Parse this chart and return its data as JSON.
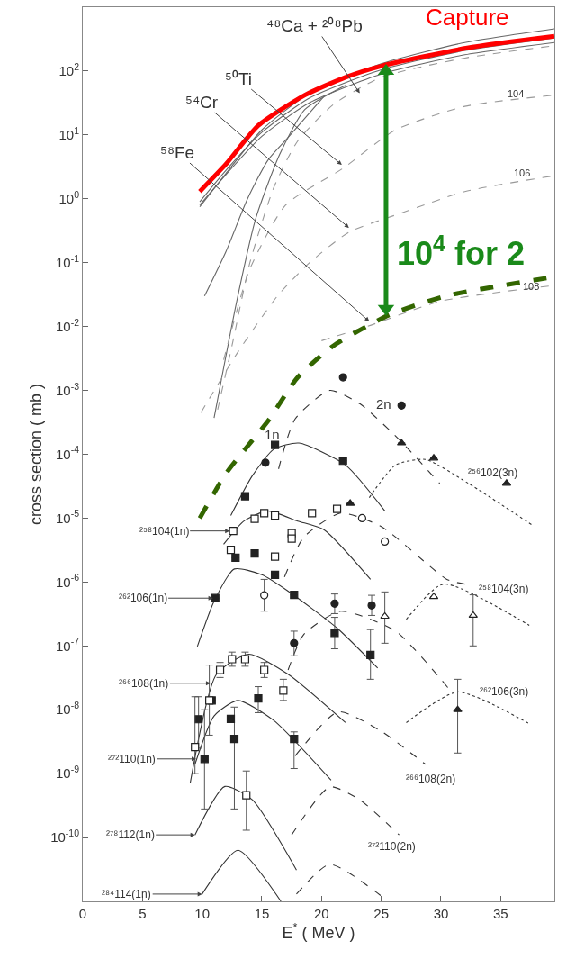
{
  "chart_data": {
    "type": "line",
    "xlabel": "E$^{*}$ ( MeV )",
    "ylabel": "cross section ( mb )",
    "log": "y",
    "xlim": [
      0,
      39.5
    ],
    "xticks": [
      0,
      5,
      10,
      15,
      20,
      25,
      30,
      35
    ],
    "ylim": [
      1e-11,
      1000
    ],
    "yticks": [
      {
        "value": 100,
        "label": "10$^{2}$"
      },
      {
        "value": 10,
        "label": "10$^{1}$"
      },
      {
        "value": 1,
        "label": "10$^{0}$"
      },
      {
        "value": 0.1,
        "label": "10$^{-1}$"
      },
      {
        "value": 0.01,
        "label": "10$^{-2}$"
      },
      {
        "value": 0.001,
        "label": "10$^{-3}$"
      },
      {
        "value": 0.0001,
        "label": "10$^{-4}$"
      },
      {
        "value": 1e-05,
        "label": "10$^{-5}$"
      },
      {
        "value": 1e-06,
        "label": "10$^{-6}$"
      },
      {
        "value": 1e-07,
        "label": "10$^{-7}$"
      },
      {
        "value": 1e-08,
        "label": "10$^{-8}$"
      },
      {
        "value": 1e-09,
        "label": "10$^{-9}$"
      },
      {
        "value": 1e-10,
        "label": "10$^{-10}$"
      }
    ],
    "series": [
      {
        "color": "#666666",
        "line_style": "solid",
        "x": [
          9.8,
          12,
          15,
          19,
          25,
          32,
          39.5
        ],
        "values": [
          0.75,
          2.5,
          12,
          45,
          130,
          280,
          460
        ]
      },
      {
        "color": "#666666",
        "line_style": "solid",
        "x": [
          9.8,
          12,
          15,
          19,
          25,
          32,
          39.5
        ],
        "values": [
          0.9,
          2.8,
          11,
          38,
          105,
          210,
          330
        ]
      },
      {
        "color": "#666666",
        "line_style": "solid",
        "x": [
          9.8,
          12,
          15,
          19,
          25,
          32,
          39.5
        ],
        "values": [
          0.8,
          2.4,
          9.5,
          32,
          90,
          180,
          280
        ]
      },
      {
        "color": "#999999",
        "line_style": "dashed",
        "x": [
          11.3,
          12.5,
          14,
          16,
          18,
          21,
          25,
          32,
          39.5
        ],
        "values": [
          0.0005,
          0.005,
          0.1,
          1.5,
          8,
          30,
          80,
          160,
          250
        ]
      },
      {
        "color": "#666666",
        "line_style": "solid",
        "x": [
          11,
          12.9,
          14.5,
          16.5,
          18.6,
          22
        ],
        "values": [
          0.00037,
          0.025,
          0.5,
          5,
          25,
          60
        ]
      },
      {
        "color": "#666666",
        "line_style": "solid",
        "x": [
          10.2,
          12,
          13.8,
          15.5,
          17.1,
          20.2
        ],
        "values": [
          0.03,
          0.15,
          1.0,
          4,
          8.7,
          40
        ]
      },
      {
        "color": "#999999",
        "line_style": "dashed",
        "x": [
          11.8,
          14,
          17,
          21.8,
          26.2,
          32,
          39.5
        ],
        "values": [
          0.003,
          0.08,
          0.8,
          3.0,
          12,
          28,
          42
        ]
      },
      {
        "color": "#999999",
        "line_style": "dashed",
        "x": [
          9.9,
          13,
          16.3,
          19,
          22.3,
          26.7,
          32,
          39.5
        ],
        "values": [
          0.00045,
          0.004,
          0.03,
          0.1,
          0.3,
          0.6,
          1.3,
          2.3
        ]
      },
      {
        "color": "#999999",
        "line_style": "dashed",
        "x": [
          20,
          23.8,
          30,
          39.5
        ],
        "values": [
          0.006,
          0.01,
          0.025,
          0.044
        ]
      },
      {
        "name": "Capture",
        "color": "#ff0000",
        "line_style": "solid",
        "x": [
          9.8,
          12,
          14.7,
          18.6,
          22,
          25,
          32.2,
          39.5
        ],
        "values": [
          1.3,
          3.5,
          14,
          42,
          80,
          120,
          230,
          350
        ]
      },
      {
        "color": "#336600",
        "line_style": "dashed",
        "x": [
          9.8,
          12,
          15.6,
          18,
          21,
          25.6,
          30.4,
          39.5
        ],
        "values": [
          1e-05,
          5e-05,
          0.00035,
          0.0016,
          0.005,
          0.015,
          0.03,
          0.06
        ]
      },
      {
        "name": "10$^{4}$ for 2",
        "color": "#1a8a1a",
        "line_style": "solid",
        "marker": "triangle",
        "x": [
          25.4,
          25.4
        ],
        "values": [
          100,
          0.019
        ]
      },
      {
        "color": "#333333",
        "line_style": "solid",
        "x": [
          12.4,
          14.2,
          16,
          18.1,
          22,
          25.3
        ],
        "values": [
          1.1e-05,
          4.6e-05,
          0.00012,
          0.00015,
          6.8e-05,
          1.3e-05
        ]
      },
      {
        "color": "#333333",
        "line_style": "dashed",
        "x": [
          16.4,
          17.8,
          20.7,
          23.2,
          26.5,
          29.9
        ],
        "values": [
          5.9e-05,
          0.00036,
          0.001,
          0.00062,
          0.00017,
          3.5e-05
        ]
      },
      {
        "color": "#333333",
        "line_style": "dotted",
        "x": [
          24,
          26.2,
          28.7,
          32.3,
          37.6
        ],
        "values": [
          2.1e-05,
          6.8e-05,
          8.3e-05,
          3.5e-05,
          7.9e-06
        ]
      },
      {
        "color": "#333333",
        "line_style": "solid",
        "x": [
          11.8,
          13.5,
          15.5,
          18,
          20.2,
          24.1
        ],
        "values": [
          3.9e-06,
          9e-06,
          1.3e-05,
          9e-06,
          6.6e-06,
          1.1e-06
        ]
      },
      {
        "color": "#333333",
        "line_style": "dashed",
        "x": [
          16.9,
          18.5,
          21.6,
          25,
          30.5,
          32
        ],
        "values": [
          1.2e-06,
          5e-06,
          1.2e-05,
          7.4e-06,
          1.1e-06,
          9.3e-07
        ]
      },
      {
        "color": "#333333",
        "line_style": "dotted",
        "x": [
          27.1,
          30.2,
          37.4
        ],
        "values": [
          2.6e-07,
          9.3e-07,
          2.1e-07
        ]
      },
      {
        "color": "#333333",
        "line_style": "solid",
        "x": [
          9.6,
          11,
          12.7,
          15,
          17.2,
          21.3,
          24.7
        ],
        "values": [
          9.8e-08,
          5e-07,
          1.6e-06,
          1.3e-06,
          7.2e-07,
          1.9e-07,
          4.5e-08
        ]
      },
      {
        "color": "#333333",
        "line_style": "dashed",
        "x": [
          17.2,
          18.5,
          21.6,
          26.2,
          30.6
        ],
        "values": [
          4.2e-08,
          1.5e-07,
          3.5e-07,
          1.7e-07,
          2.2e-08
        ]
      },
      {
        "color": "#333333",
        "line_style": "dotted",
        "x": [
          27.1,
          31.4,
          37.3
        ],
        "values": [
          6.3e-09,
          1.9e-08,
          6.2e-09
        ]
      },
      {
        "color": "#333333",
        "line_style": "solid",
        "x": [
          9,
          11.2,
          13.9,
          17.2,
          22
        ],
        "values": [
          7.1e-10,
          3.6e-08,
          7.4e-08,
          3.6e-08,
          6.3e-09
        ]
      },
      {
        "color": "#333333",
        "line_style": "dashed",
        "x": [
          17.8,
          21.4,
          25,
          28.7
        ],
        "values": [
          1.9e-09,
          9.3e-09,
          4.6e-09,
          1.4e-09
        ]
      },
      {
        "color": "#333333",
        "line_style": "solid",
        "x": [
          9.4,
          11,
          13,
          16,
          20.8
        ],
        "values": [
          1.4e-09,
          8e-09,
          1.4e-08,
          6.8e-09,
          7.9e-10
        ]
      },
      {
        "color": "#333333",
        "line_style": "dashed",
        "x": [
          17.5,
          20.7,
          23.2,
          26.5
        ],
        "values": [
          1.1e-10,
          6.2e-10,
          3.9e-10,
          1.1e-10
        ]
      },
      {
        "color": "#333333",
        "line_style": "solid",
        "x": [
          9.4,
          11.9,
          14.2,
          17.9
        ],
        "values": [
          1.1e-10,
          6.3e-10,
          3.9e-10,
          3.1e-11
        ]
      },
      {
        "color": "#333333",
        "line_style": "solid",
        "x": [
          10,
          13,
          16.6
        ],
        "values": [
          1.3e-11,
          6.3e-11,
          1e-11
        ]
      },
      {
        "color": "#333333",
        "line_style": "dashed",
        "x": [
          17.9,
          20.7,
          25.3
        ],
        "values": [
          1.3e-11,
          3.8e-11,
          1.1e-11
        ]
      },
      {
        "type": "scatter",
        "color": "#222222",
        "marker": "square",
        "x": [
          13.6,
          16.1,
          21.8,
          12.8,
          14.4,
          16.1,
          11.1,
          17.7,
          21.1,
          24.1,
          9.7,
          10.8,
          10.2,
          12.4,
          12.7,
          14.7,
          17.7
        ],
        "values": [
          2.2e-05,
          0.00014,
          7.9e-05,
          2.4e-06,
          2.8e-06,
          1.3e-06,
          5.6e-07,
          6.3e-07,
          1.6e-07,
          7.2e-08,
          7.1e-09,
          1.4e-08,
          1.7e-09,
          7.2e-09,
          3.5e-09,
          1.5e-08,
          3.5e-09
        ],
        "errors": [
          null,
          null,
          null,
          null,
          null,
          null,
          null,
          null,
          [
            9e-08,
            2.8e-07
          ],
          [
            3e-08,
            1.8e-07
          ],
          [
            2.5e-09,
            1.6e-08
          ],
          null,
          [
            2.8e-10,
            1e-08
          ],
          null,
          [
            2.8e-10,
            1.1e-08
          ],
          [
            9e-09,
            2.3e-08
          ],
          [
            1.2e-09,
            4.5e-09
          ]
        ]
      },
      {
        "type": "scatter",
        "color": "#222222",
        "marker": "circle",
        "x": [
          15.3,
          21.8,
          26.7,
          21.1,
          24.2,
          17.7
        ],
        "values": [
          7.4e-05,
          0.0016,
          0.00058,
          4.6e-07,
          4.3e-07,
          1.1e-07
        ],
        "errors": [
          null,
          null,
          null,
          [
            3.2e-07,
            6.5e-07
          ],
          [
            3e-07,
            6.2e-07
          ],
          [
            7e-08,
            1.7e-07
          ]
        ]
      },
      {
        "type": "scatter",
        "color": "#222222",
        "marker": "triangle",
        "x": [
          26.7,
          29.4,
          35.5,
          22.4,
          31.4
        ],
        "values": [
          0.00015,
          8.7e-05,
          3.5e-05,
          1.7e-05,
          1e-08
        ],
        "errors": [
          null,
          null,
          null,
          null,
          [
            2.1e-09,
            3e-08
          ]
        ]
      },
      {
        "type": "scatter",
        "color": "#ffffff",
        "marker": "square",
        "x": [
          12.6,
          14.4,
          15.2,
          16.1,
          17.5,
          17.5,
          16.1,
          12.4,
          19.2,
          21.3,
          11.5,
          12.5,
          13.6,
          15.2,
          16.8,
          10.6,
          9.4,
          13.7
        ],
        "values": [
          6.3e-06,
          9.8e-06,
          1.2e-05,
          1.1e-05,
          5.8e-06,
          4.8e-06,
          2.5e-06,
          3.2e-06,
          1.2e-05,
          1.4e-05,
          4.2e-08,
          6.2e-08,
          6.2e-08,
          4.2e-08,
          2e-08,
          1.4e-08,
          2.6e-09,
          4.6e-10
        ],
        "errors": [
          null,
          null,
          null,
          null,
          null,
          null,
          null,
          null,
          null,
          null,
          [
            3.2e-08,
            5.5e-08
          ],
          [
            4.8e-08,
            8e-08
          ],
          [
            4.8e-08,
            8e-08
          ],
          [
            3.2e-08,
            5.5e-08
          ],
          [
            1.4e-08,
            3e-08
          ],
          [
            4e-09,
            5e-08
          ],
          [
            1e-09,
            1.6e-08
          ],
          [
            1.3e-10,
            1.1e-09
          ]
        ]
      },
      {
        "type": "scatter",
        "color": "#ffffff",
        "marker": "circle",
        "x": [
          23.4,
          25.3,
          15.2
        ],
        "values": [
          1e-05,
          4.3e-06,
          6.2e-07
        ],
        "errors": [
          null,
          null,
          [
            3.5e-07,
            1.1e-06
          ]
        ]
      },
      {
        "type": "scatter",
        "color": "#ffffff",
        "marker": "triangle",
        "x": [
          29.4,
          32.7,
          25.3
        ],
        "values": [
          5.9e-07,
          3e-07,
          2.9e-07
        ],
        "errors": [
          null,
          [
            1e-07,
            6.3e-07
          ],
          [
            1.1e-07,
            7e-07
          ]
        ]
      }
    ],
    "annotations": [
      {
        "text": "⁴⁸Ca + ²⁰⁸Pb",
        "x": 23.2,
        "y": 45
      },
      {
        "text": "⁵⁰Ti",
        "x": 21.7,
        "y": 3.4
      },
      {
        "text": "⁵⁴Cr",
        "x": 22.3,
        "y": 0.35
      },
      {
        "text": "⁵⁸Fe",
        "x": 24.0,
        "y": 0.012
      },
      "104",
      "106",
      "108",
      "1n",
      "2n",
      "²⁵⁶102(3n)",
      "²⁵⁸104(3n)",
      "²⁶²106(3n)",
      "²⁶⁶108(2n)",
      "²⁷²110(2n)",
      {
        "text": "²⁵⁸104(1n)",
        "x": 12.3,
        "y": 6.3e-06
      },
      {
        "text": "²⁶²106(1n)",
        "x": 10.9,
        "y": 5.6e-07
      },
      {
        "text": "²⁶⁶108(1n)",
        "x": 10.7,
        "y": 2.6e-08
      },
      {
        "text": "²⁷²110(1n)",
        "x": 9.5,
        "y": 1.7e-09
      },
      {
        "text": "²⁷⁸112(1n)",
        "x": 9.4,
        "y": 1.1e-10
      },
      {
        "text": "²⁸⁴114(1n)",
        "x": 10,
        "y": 1.3e-11
      }
    ]
  }
}
